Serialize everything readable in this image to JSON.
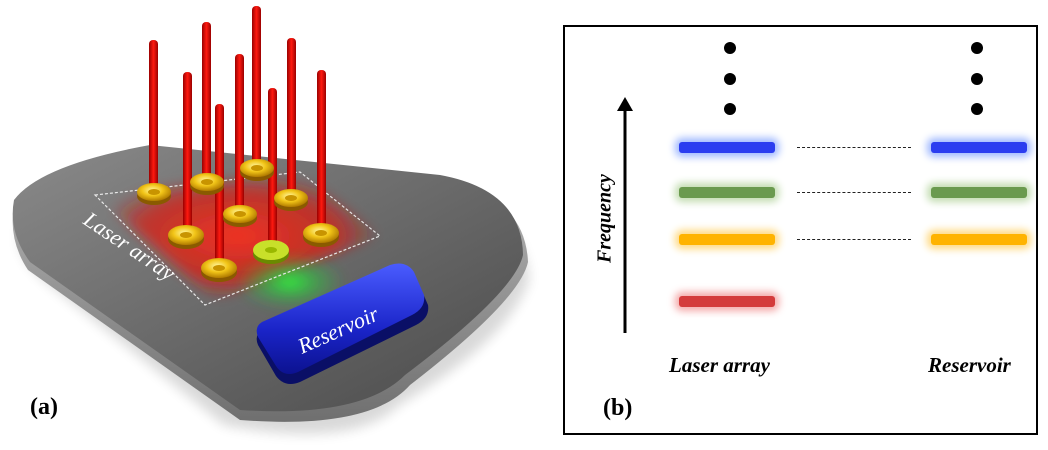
{
  "panel_a": {
    "label": "(a)",
    "laser_array_label": "Laser array",
    "reservoir_label": "Reservoir"
  },
  "panel_b": {
    "label": "(b)",
    "axis_label": "Frequency",
    "left_column_label": "Laser array",
    "right_column_label": "Reservoir",
    "levels": [
      {
        "color": "#2b3df0",
        "glow": "#9fb8ff",
        "in_reservoir": true
      },
      {
        "color": "#6a9a4e",
        "glow": "#c2dcb0",
        "in_reservoir": true
      },
      {
        "color": "#ffb300",
        "glow": "#ffd980",
        "in_reservoir": true
      },
      {
        "color": "#d43b3b",
        "glow": "#f4a8a8",
        "in_reservoir": false
      }
    ]
  }
}
